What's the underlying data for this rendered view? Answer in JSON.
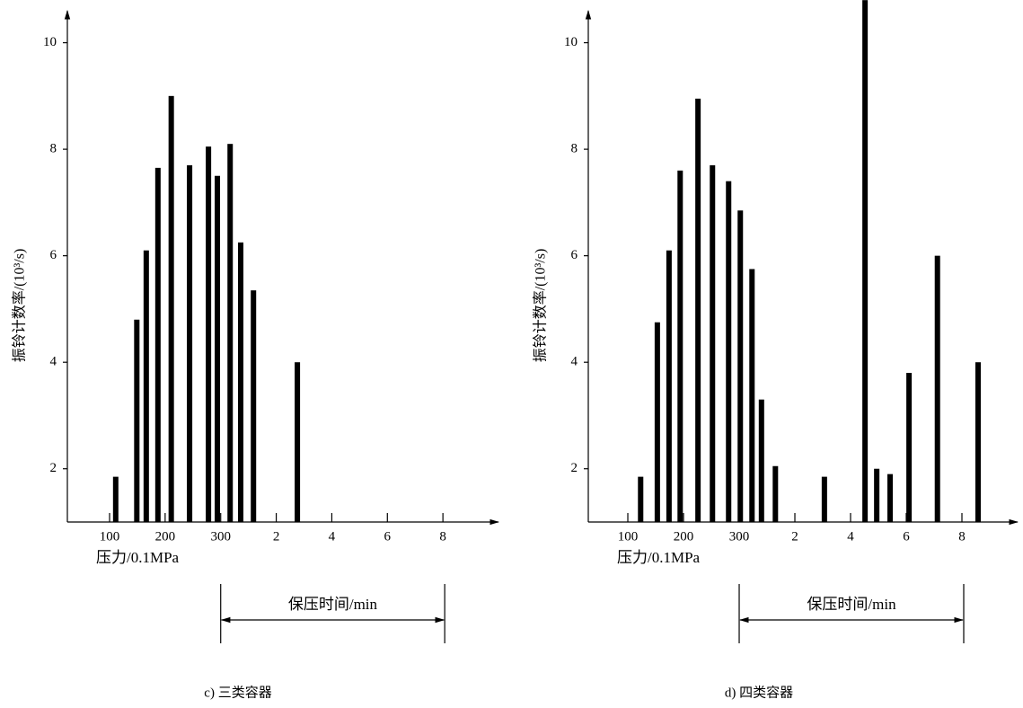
{
  "chart_data": [
    {
      "type": "bar",
      "y_label": "振铃计数率/(10³/s)",
      "x_label": "压力/0.1MPa",
      "annotation": "保压时间/min",
      "caption": "c) 三类容器",
      "color": "#000000",
      "x": [
        1.11,
        1.49,
        1.66,
        1.87,
        2.11,
        2.44,
        2.78,
        2.94,
        3.17,
        3.36,
        3.59,
        4.38
      ],
      "values": [
        1.85,
        4.8,
        6.1,
        7.65,
        9.0,
        7.7,
        8.05,
        7.5,
        8.1,
        6.25,
        5.35,
        4.0
      ],
      "xlim": [
        0.24,
        8.0
      ],
      "ylim": [
        1,
        10.6
      ],
      "xticks": [
        {
          "value": 1,
          "label": "100"
        },
        {
          "value": 2,
          "label": "200"
        },
        {
          "value": 3,
          "label": "300"
        },
        {
          "value": 4,
          "label": "2"
        },
        {
          "value": 5,
          "label": "4"
        },
        {
          "value": 6,
          "label": "6"
        },
        {
          "value": 7,
          "label": "8"
        }
      ],
      "yticks": [
        2,
        4,
        6,
        8,
        10
      ]
    },
    {
      "type": "bar",
      "y_label": "振铃计数率/(10³/s)",
      "x_label": "压力/0.1MPa",
      "annotation": "保压时间/min",
      "caption": "d) 四类容器",
      "color": "#000000",
      "x": [
        1.23,
        1.53,
        1.74,
        1.94,
        2.26,
        2.52,
        2.81,
        3.02,
        3.23,
        3.4,
        3.65,
        4.53,
        5.26,
        5.47,
        5.71,
        6.05,
        6.56,
        7.29
      ],
      "values": [
        1.85,
        4.75,
        6.1,
        7.6,
        8.95,
        7.7,
        7.4,
        6.85,
        5.75,
        3.3,
        2.05,
        1.85,
        10.8,
        2.0,
        1.9,
        3.8,
        6.0,
        4.0
      ],
      "xlim": [
        0.29,
        8.0
      ],
      "ylim": [
        1,
        10.6
      ],
      "xticks": [
        {
          "value": 1,
          "label": "100"
        },
        {
          "value": 2,
          "label": "200"
        },
        {
          "value": 3,
          "label": "300"
        },
        {
          "value": 4,
          "label": "2"
        },
        {
          "value": 5,
          "label": "4"
        },
        {
          "value": 6,
          "label": "6"
        },
        {
          "value": 7,
          "label": "8"
        }
      ],
      "yticks": [
        2,
        4,
        6,
        8,
        10
      ]
    }
  ]
}
